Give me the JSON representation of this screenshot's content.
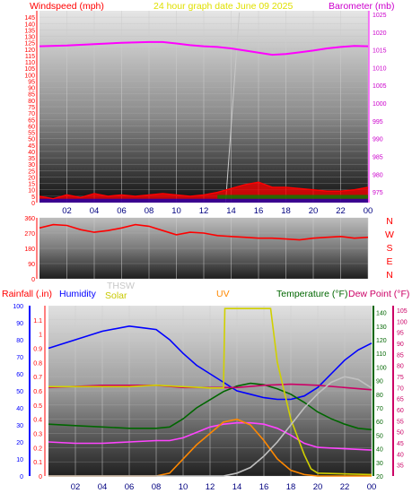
{
  "header": {
    "left_label": "Windspeed (mph)",
    "center_label": "24 hour graph date   June 09 2025",
    "right_label": "Barometer (mb)"
  },
  "wind_dir_letters": [
    "N",
    "W",
    "S",
    "E",
    "N"
  ],
  "bottom_header": {
    "rain_label": "Rainfall (.in)",
    "humidity_label": "Humidity",
    "thsw_label": "THSW",
    "solar_label": "Solar",
    "uv_label": "UV",
    "temperature_label": "Temperature (°F)",
    "dewpoint_label": "Dew Point (°F)"
  },
  "colors": {
    "wind": "#ff0000",
    "wind_avg": "#0000cc",
    "wind_green": "#008000",
    "barometer": "#ff00ff",
    "humidity": "#0000ff",
    "temperature": "#006600",
    "dewpoint": "#cc0066",
    "thsw": "#c0c0c0",
    "solar": "#d0d000",
    "uv": "#ff8800",
    "rain": "#ff4400",
    "title": "#e0e000"
  },
  "chart_data": [
    {
      "type": "line",
      "title": "24 hour graph date   June 09 2025",
      "x_ticks": [
        "02",
        "04",
        "06",
        "08",
        "10",
        "12",
        "14",
        "16",
        "18",
        "20",
        "22",
        "00"
      ],
      "y_left": {
        "label": "Windspeed (mph)",
        "ticks": [
          "0",
          "5",
          "10",
          "15",
          "20",
          "25",
          "30",
          "35",
          "40",
          "45",
          "50",
          "55",
          "60",
          "65",
          "70",
          "75",
          "80",
          "85",
          "90",
          "95",
          "100",
          "105",
          "110",
          "115",
          "120",
          "125",
          "130",
          "135",
          "140",
          "145"
        ],
        "range": [
          0,
          150
        ]
      },
      "y_right": {
        "label": "Barometer (mb)",
        "ticks": [
          "975",
          "980",
          "985",
          "990",
          "995",
          "1000",
          "1005",
          "1010",
          "1015",
          "1020",
          "1025"
        ],
        "range": [
          972,
          1026
        ]
      },
      "series": [
        {
          "name": "Barometer (mb)",
          "color": "#ff00ff",
          "x": [
            0,
            2,
            4,
            6,
            8,
            9,
            10,
            11,
            12,
            13,
            14,
            15,
            16,
            17,
            18,
            19,
            20,
            21,
            22,
            23,
            24
          ],
          "values": [
            1016,
            1016.2,
            1016.6,
            1017,
            1017.2,
            1017.2,
            1016.8,
            1016.3,
            1016,
            1015.8,
            1015.4,
            1014.8,
            1014.2,
            1013.6,
            1013.8,
            1014.3,
            1014.8,
            1015.4,
            1015.8,
            1016.1,
            1016
          ]
        },
        {
          "name": "Wind",
          "color": "#ff0000",
          "x": [
            0,
            1,
            2,
            3,
            4,
            5,
            6,
            7,
            8,
            9,
            10,
            11,
            12,
            13,
            14,
            15,
            16,
            17,
            18,
            19,
            20,
            21,
            22,
            23,
            24
          ],
          "values": [
            5,
            3,
            6,
            4,
            7,
            5,
            6,
            5,
            6,
            7,
            6,
            5,
            6,
            8,
            11,
            14,
            16,
            12,
            12,
            11,
            10,
            9,
            9,
            10,
            12
          ]
        }
      ]
    },
    {
      "type": "line",
      "y_left": {
        "ticks": [
          "0",
          "90",
          "180",
          "270",
          "360"
        ],
        "range": [
          0,
          360
        ]
      },
      "series": [
        {
          "name": "Wind direction",
          "color": "#ff0000",
          "x": [
            0,
            1,
            2,
            3,
            4,
            5,
            6,
            7,
            8,
            9,
            10,
            11,
            12,
            13,
            14,
            15,
            16,
            17,
            18,
            19,
            20,
            21,
            22,
            23,
            24
          ],
          "values": [
            300,
            320,
            315,
            290,
            275,
            285,
            300,
            320,
            310,
            285,
            260,
            275,
            270,
            255,
            250,
            245,
            240,
            240,
            235,
            230,
            240,
            245,
            250,
            240,
            245
          ]
        }
      ]
    },
    {
      "type": "line",
      "x_ticks": [
        "02",
        "04",
        "06",
        "08",
        "10",
        "12",
        "14",
        "16",
        "18",
        "20",
        "22",
        "00"
      ],
      "y_left": {
        "label": "Rainfall (.in)",
        "ticks": [
          "0",
          "0.1",
          "0.2",
          "0.3",
          "0.4",
          "0.5",
          "0.6",
          "0.7",
          "0.8",
          "0.9",
          "1",
          "1.1"
        ],
        "range": [
          0,
          1.2
        ]
      },
      "y_left2": {
        "label": "Humidity",
        "ticks": [
          "0",
          "10",
          "20",
          "30",
          "40",
          "50",
          "60",
          "70",
          "80",
          "90",
          "100"
        ],
        "range": [
          0,
          100
        ]
      },
      "y_right": {
        "label": "Temperature (°F)",
        "ticks": [
          "20",
          "30",
          "40",
          "50",
          "60",
          "70",
          "80",
          "90",
          "100",
          "110",
          "120",
          "130",
          "140"
        ],
        "range": [
          20,
          145
        ]
      },
      "y_right2": {
        "label": "Dew Point (°F)",
        "ticks": [
          "35",
          "40",
          "45",
          "50",
          "55",
          "60",
          "65",
          "70",
          "75",
          "80",
          "85",
          "90",
          "95",
          "100",
          "105"
        ],
        "range": [
          30,
          107
        ]
      },
      "series": [
        {
          "name": "Humidity",
          "color": "#0000ff",
          "axis": "humidity",
          "x": [
            0,
            2,
            4,
            6,
            7,
            8,
            9,
            10,
            11,
            12,
            13,
            14,
            15,
            16,
            17,
            18,
            19,
            20,
            21,
            22,
            23,
            24
          ],
          "values": [
            75,
            80,
            85,
            88,
            87,
            86,
            80,
            72,
            65,
            60,
            55,
            50,
            48,
            46,
            45,
            45,
            47,
            52,
            60,
            68,
            74,
            78
          ]
        },
        {
          "name": "Temperature (°F)",
          "color": "#006600",
          "axis": "temp",
          "x": [
            0,
            2,
            4,
            6,
            8,
            9,
            10,
            11,
            12,
            13,
            14,
            15,
            16,
            17,
            18,
            19,
            20,
            21,
            22,
            23,
            24
          ],
          "values": [
            58,
            57,
            56,
            55,
            55,
            56,
            62,
            70,
            76,
            82,
            86,
            88,
            87,
            84,
            80,
            74,
            67,
            62,
            58,
            55,
            54
          ]
        },
        {
          "name": "Dew Point (°F)",
          "color": "#cc0066",
          "axis": "dew",
          "x": [
            0,
            2,
            4,
            6,
            8,
            10,
            12,
            14,
            16,
            18,
            20,
            22,
            24
          ],
          "values": [
            70,
            70.5,
            71,
            71,
            71,
            70,
            70,
            70,
            71,
            71.5,
            71,
            70,
            69
          ]
        },
        {
          "name": "Magenta",
          "color": "#ff44ff",
          "axis": "temp",
          "x": [
            0,
            2,
            4,
            6,
            8,
            9,
            10,
            11,
            12,
            13,
            14,
            15,
            16,
            17,
            18,
            19,
            20,
            22,
            24
          ],
          "values": [
            45,
            44,
            44,
            45,
            46,
            46,
            48,
            52,
            56,
            58,
            59,
            59,
            58,
            55,
            50,
            44,
            41,
            40,
            39
          ]
        },
        {
          "name": "Solar",
          "color": "#d0d000",
          "axis": "rain",
          "x": [
            0,
            2,
            4,
            6,
            8,
            10,
            12,
            13,
            13.1,
            16.5,
            17,
            18,
            19,
            19.5,
            20,
            24
          ],
          "values": [
            0.63,
            0.63,
            0.63,
            0.63,
            0.64,
            0.63,
            0.62,
            0.62,
            1.18,
            1.18,
            0.8,
            0.4,
            0.15,
            0.05,
            0.02,
            0.01
          ]
        },
        {
          "name": "UV",
          "color": "#ff8800",
          "axis": "rain",
          "x": [
            0,
            8,
            9,
            10,
            11,
            12,
            13,
            14,
            15,
            16,
            17,
            18,
            19,
            20,
            24
          ],
          "values": [
            0,
            0,
            0.02,
            0.12,
            0.22,
            0.3,
            0.38,
            0.4,
            0.36,
            0.25,
            0.12,
            0.04,
            0.01,
            0,
            0
          ]
        },
        {
          "name": "THSW",
          "color": "#c0c0c0",
          "axis": "rain",
          "x": [
            0,
            12,
            13,
            14,
            15,
            16,
            17,
            18,
            19,
            20,
            21,
            22,
            23,
            24
          ],
          "values": [
            0,
            0,
            0,
            0.02,
            0.06,
            0.14,
            0.24,
            0.36,
            0.48,
            0.58,
            0.66,
            0.7,
            0.68,
            0.62
          ]
        }
      ]
    }
  ]
}
